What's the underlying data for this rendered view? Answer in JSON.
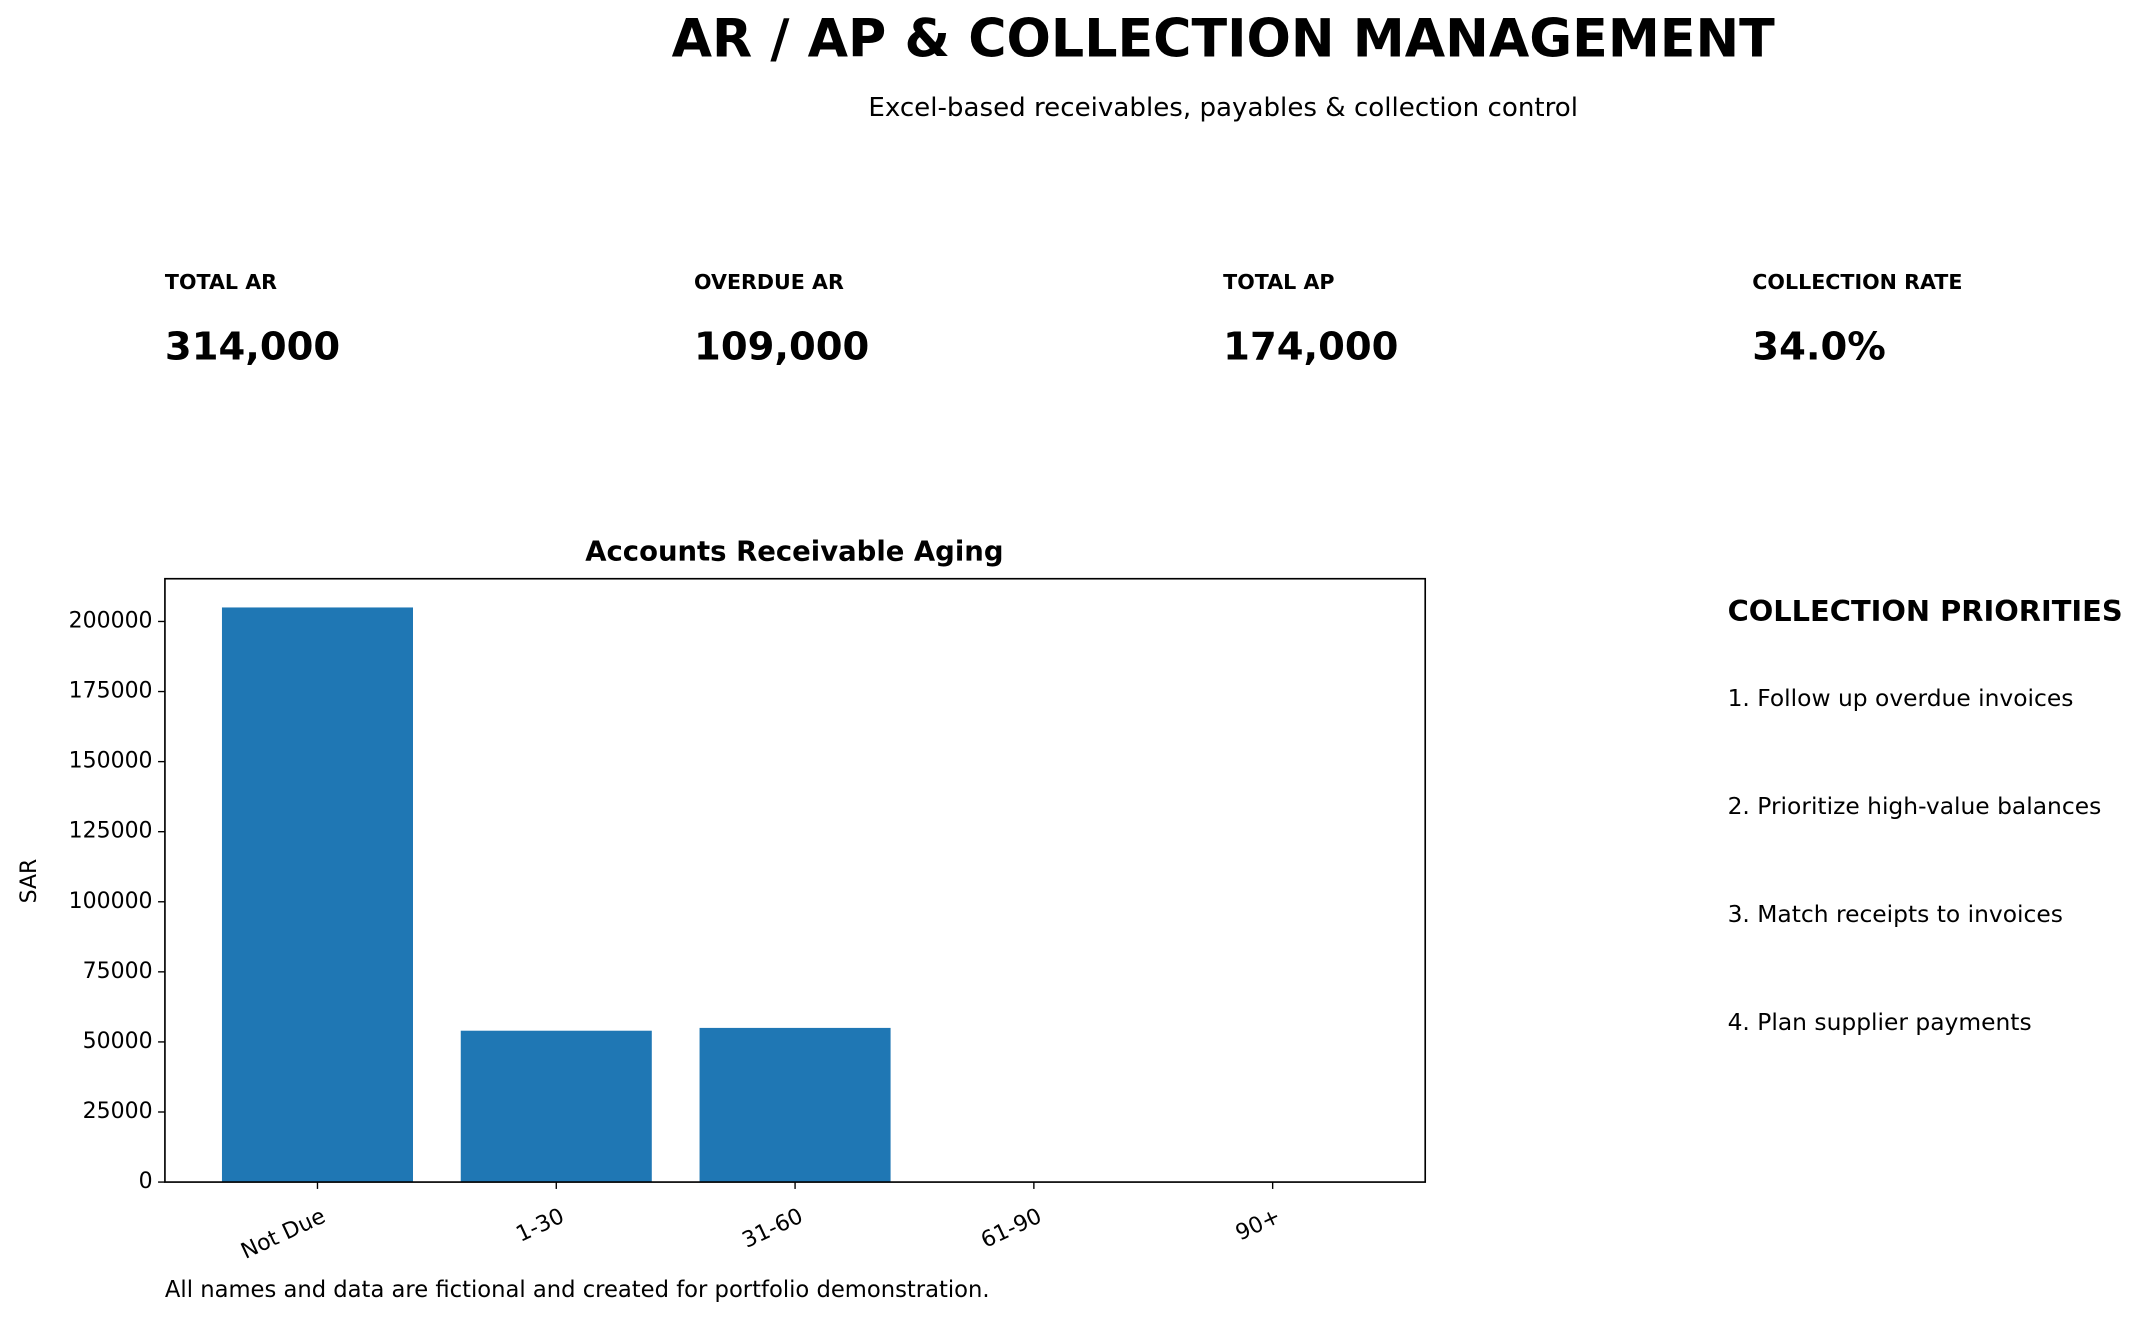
{
  "header": {
    "title": "AR / AP & COLLECTION MANAGEMENT",
    "subtitle": "Excel-based receivables, payables & collection control"
  },
  "kpis": [
    {
      "label": "TOTAL AR",
      "value": "314,000"
    },
    {
      "label": "OVERDUE AR",
      "value": "109,000"
    },
    {
      "label": "TOTAL AP",
      "value": "174,000"
    },
    {
      "label": "COLLECTION RATE",
      "value": "34.0%"
    }
  ],
  "chart_data": {
    "type": "bar",
    "title": "Accounts Receivable Aging",
    "y_label": "SAR",
    "categories": [
      "Not Due",
      "1-30",
      "31-60",
      "61-90",
      "90+"
    ],
    "values": [
      205000,
      54000,
      55000,
      0,
      0
    ],
    "color": "#1f77b4",
    "ylim": [
      0,
      215250
    ],
    "yticks": [
      0,
      25000,
      50000,
      75000,
      100000,
      125000,
      150000,
      175000,
      200000
    ],
    "grid": false
  },
  "priorities": {
    "title": "COLLECTION PRIORITIES",
    "items": [
      "1. Follow up overdue invoices",
      "2. Prioritize high-value balances",
      "3. Match receipts to invoices",
      "4. Plan supplier payments"
    ]
  },
  "footnote": "All names and data are fictional and created for portfolio demonstration."
}
